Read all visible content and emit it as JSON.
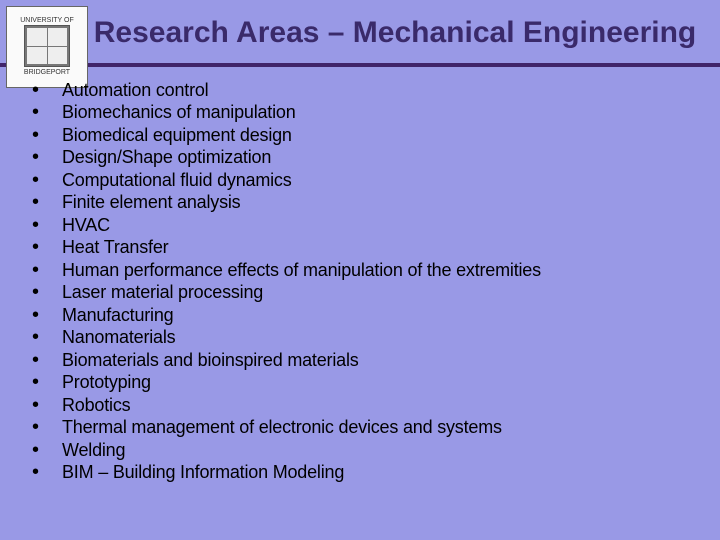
{
  "slide": {
    "background_color": "#9999e6",
    "title_color": "#3a2a6a",
    "divider_color": "#40246a",
    "title": "Research Areas – Mechanical Engineering",
    "logo": {
      "top_text": "UNIVERSITY OF",
      "bottom_text": "BRIDGEPORT"
    },
    "bullets": [
      "Automation control",
      "Biomechanics of manipulation",
      "Biomedical equipment design",
      "Design/Shape optimization",
      "Computational fluid dynamics",
      "Finite element analysis",
      "HVAC",
      "Heat Transfer",
      "Human performance effects of manipulation of the extremities",
      "Laser material processing",
      "Manufacturing",
      "Nanomaterials",
      "Biomaterials and bioinspired materials",
      "Prototyping",
      "Robotics",
      "Thermal management of electronic devices and systems",
      "Welding",
      "BIM – Building Information Modeling"
    ]
  }
}
